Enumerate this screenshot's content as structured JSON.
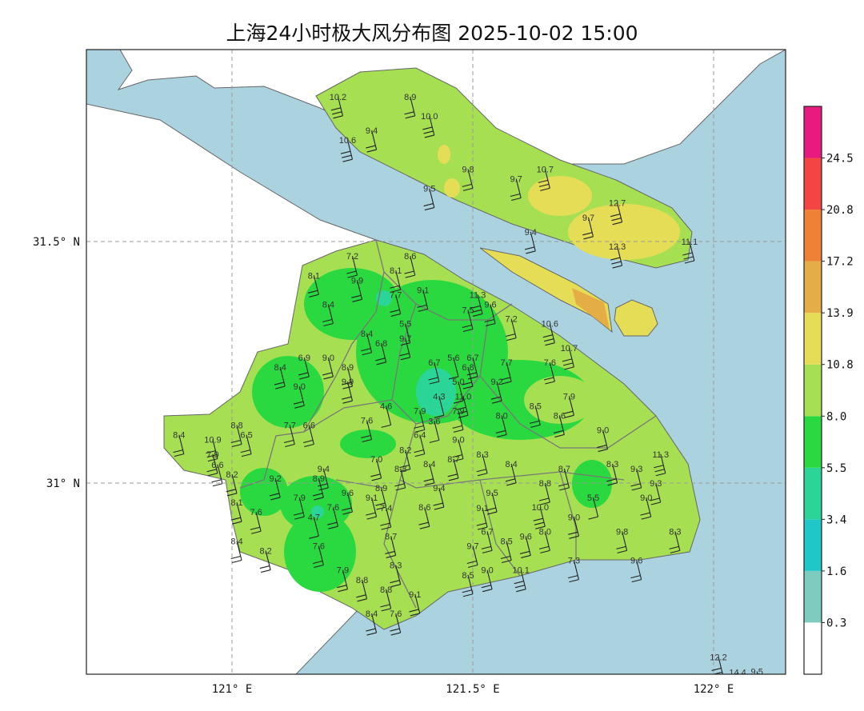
{
  "title": "上海24小时极大风分布图 2025-10-02 15:00",
  "axes": {
    "lon_ticks": [
      {
        "value": 121.0,
        "label": "121° E"
      },
      {
        "value": 121.5,
        "label": "121.5° E"
      },
      {
        "value": 122.0,
        "label": "122° E"
      }
    ],
    "lat_ticks": [
      {
        "value": 31.5,
        "label": "31.5° N"
      },
      {
        "value": 31.0,
        "label": "31° N"
      }
    ],
    "lon_range": [
      120.7,
      122.15
    ],
    "lat_range": [
      30.6,
      31.9
    ],
    "grid": "dashed"
  },
  "colors": {
    "water": "#aad3df",
    "land_outside": "#ffffff",
    "boundary": "#666666"
  },
  "colorbar": {
    "levels": [
      "0.3",
      "1.6",
      "3.4",
      "5.5",
      "8.0",
      "10.8",
      "13.9",
      "17.2",
      "20.8",
      "24.5"
    ],
    "colors": [
      "#ffffff",
      "#7fcbc0",
      "#20c7c9",
      "#2ad597",
      "#2ad940",
      "#a6e052",
      "#e5dd55",
      "#e5ad45",
      "#ef8137",
      "#f54444",
      "#e8197f"
    ]
  },
  "stations": [
    {
      "lon": 121.22,
      "lat": 31.8,
      "v": "10.2"
    },
    {
      "lon": 121.37,
      "lat": 31.8,
      "v": "8.9"
    },
    {
      "lon": 121.41,
      "lat": 31.76,
      "v": "10.0"
    },
    {
      "lon": 121.29,
      "lat": 31.73,
      "v": "9.4"
    },
    {
      "lon": 121.24,
      "lat": 31.71,
      "v": "10.6"
    },
    {
      "lon": 121.49,
      "lat": 31.65,
      "v": "9.8"
    },
    {
      "lon": 121.41,
      "lat": 31.61,
      "v": "9.5"
    },
    {
      "lon": 121.59,
      "lat": 31.63,
      "v": "9.7"
    },
    {
      "lon": 121.65,
      "lat": 31.65,
      "v": "10.7"
    },
    {
      "lon": 121.74,
      "lat": 31.55,
      "v": "9.7"
    },
    {
      "lon": 121.8,
      "lat": 31.58,
      "v": "12.7"
    },
    {
      "lon": 121.62,
      "lat": 31.52,
      "v": "9.4"
    },
    {
      "lon": 121.8,
      "lat": 31.49,
      "v": "12.3"
    },
    {
      "lon": 121.95,
      "lat": 31.5,
      "v": "11.1"
    },
    {
      "lon": 121.25,
      "lat": 31.47,
      "v": "7.2"
    },
    {
      "lon": 121.37,
      "lat": 31.47,
      "v": "8.6"
    },
    {
      "lon": 121.17,
      "lat": 31.43,
      "v": "8.1"
    },
    {
      "lon": 121.26,
      "lat": 31.42,
      "v": "9.9"
    },
    {
      "lon": 121.34,
      "lat": 31.44,
      "v": "8.1"
    },
    {
      "lon": 121.34,
      "lat": 31.39,
      "v": "7.7"
    },
    {
      "lon": 121.37,
      "lat": 31.4,
      "v": "9.1"
    },
    {
      "lon": 121.2,
      "lat": 31.37,
      "v": "8.4"
    },
    {
      "lon": 121.51,
      "lat": 31.39,
      "v": "11.3"
    },
    {
      "lon": 121.49,
      "lat": 31.38,
      "v": "7.5"
    },
    {
      "lon": 121.51,
      "lat": 31.37,
      "v": "9.6"
    },
    {
      "lon": 121.58,
      "lat": 31.34,
      "v": "7.2"
    },
    {
      "lon": 121.36,
      "lat": 31.33,
      "v": "5.5"
    },
    {
      "lon": 121.28,
      "lat": 31.31,
      "v": "8.4"
    },
    {
      "lon": 121.31,
      "lat": 31.29,
      "v": "6.8"
    },
    {
      "lon": 121.36,
      "lat": 31.3,
      "v": "9.7"
    },
    {
      "lon": 121.2,
      "lat": 31.26,
      "v": "9.0"
    },
    {
      "lon": 121.15,
      "lat": 31.26,
      "v": "6.9"
    },
    {
      "lon": 121.42,
      "lat": 31.25,
      "v": "6.7"
    },
    {
      "lon": 121.46,
      "lat": 31.26,
      "v": "5.6"
    },
    {
      "lon": 121.5,
      "lat": 31.26,
      "v": "6.7"
    },
    {
      "lon": 121.47,
      "lat": 31.21,
      "v": "5.0"
    },
    {
      "lon": 121.49,
      "lat": 31.24,
      "v": "6.8"
    },
    {
      "lon": 121.57,
      "lat": 31.25,
      "v": "7.7"
    },
    {
      "lon": 121.66,
      "lat": 31.33,
      "v": "10.6"
    },
    {
      "lon": 121.7,
      "lat": 31.28,
      "v": "10.7"
    },
    {
      "lon": 121.66,
      "lat": 31.25,
      "v": "7.6"
    },
    {
      "lon": 121.55,
      "lat": 31.21,
      "v": "9.2"
    },
    {
      "lon": 121.24,
      "lat": 31.24,
      "v": "8.9"
    },
    {
      "lon": 121.24,
      "lat": 31.21,
      "v": "9.9"
    },
    {
      "lon": 121.1,
      "lat": 31.24,
      "v": "8.4"
    },
    {
      "lon": 121.14,
      "lat": 31.2,
      "v": "9.0"
    },
    {
      "lon": 121.43,
      "lat": 31.18,
      "v": "4.3"
    },
    {
      "lon": 121.48,
      "lat": 31.18,
      "v": "11.0"
    },
    {
      "lon": 121.7,
      "lat": 31.18,
      "v": "7.9"
    },
    {
      "lon": 121.63,
      "lat": 31.16,
      "v": "8.5"
    },
    {
      "lon": 121.32,
      "lat": 31.16,
      "v": "4.6"
    },
    {
      "lon": 121.39,
      "lat": 31.15,
      "v": "7.9"
    },
    {
      "lon": 121.42,
      "lat": 31.15,
      "v": "3.6"
    },
    {
      "lon": 121.47,
      "lat": 31.15,
      "v": "7.9"
    },
    {
      "lon": 121.56,
      "lat": 31.14,
      "v": "8.0"
    },
    {
      "lon": 121.68,
      "lat": 31.14,
      "v": "8.6"
    },
    {
      "lon": 121.28,
      "lat": 31.13,
      "v": "7.6"
    },
    {
      "lon": 121.39,
      "lat": 31.1,
      "v": "6.4"
    },
    {
      "lon": 121.36,
      "lat": 31.09,
      "v": "8.2"
    },
    {
      "lon": 121.01,
      "lat": 31.12,
      "v": "8.8"
    },
    {
      "lon": 121.03,
      "lat": 31.1,
      "v": "6.5"
    },
    {
      "lon": 121.12,
      "lat": 31.12,
      "v": "7.7"
    },
    {
      "lon": 121.16,
      "lat": 31.12,
      "v": "6.6"
    },
    {
      "lon": 120.89,
      "lat": 31.1,
      "v": "8.4"
    },
    {
      "lon": 120.96,
      "lat": 31.09,
      "v": "10.9"
    },
    {
      "lon": 120.96,
      "lat": 31.06,
      "v": "7.9"
    },
    {
      "lon": 120.97,
      "lat": 31.06,
      "v": "6.6"
    },
    {
      "lon": 121.0,
      "lat": 31.04,
      "v": "8.2"
    },
    {
      "lon": 121.47,
      "lat": 31.09,
      "v": "9.0"
    },
    {
      "lon": 121.46,
      "lat": 31.05,
      "v": "8.7"
    },
    {
      "lon": 121.52,
      "lat": 31.06,
      "v": "8.3"
    },
    {
      "lon": 121.3,
      "lat": 31.05,
      "v": "7.0"
    },
    {
      "lon": 121.41,
      "lat": 31.04,
      "v": "8.4"
    },
    {
      "lon": 121.35,
      "lat": 31.03,
      "v": "8.3"
    },
    {
      "lon": 121.58,
      "lat": 31.04,
      "v": "8.4"
    },
    {
      "lon": 121.77,
      "lat": 31.11,
      "v": "9.0"
    },
    {
      "lon": 121.89,
      "lat": 31.06,
      "v": "11.3"
    },
    {
      "lon": 121.79,
      "lat": 31.04,
      "v": "8.3"
    },
    {
      "lon": 121.69,
      "lat": 31.03,
      "v": "8.7"
    },
    {
      "lon": 121.65,
      "lat": 31.0,
      "v": "8.8"
    },
    {
      "lon": 121.84,
      "lat": 31.03,
      "v": "9.3"
    },
    {
      "lon": 121.88,
      "lat": 31.0,
      "v": "9.3"
    },
    {
      "lon": 121.19,
      "lat": 31.03,
      "v": "9.4"
    },
    {
      "lon": 121.09,
      "lat": 31.01,
      "v": "9.2"
    },
    {
      "lon": 121.18,
      "lat": 31.01,
      "v": "8.9"
    },
    {
      "lon": 121.31,
      "lat": 30.99,
      "v": "8.9"
    },
    {
      "lon": 121.43,
      "lat": 30.99,
      "v": "9.4"
    },
    {
      "lon": 121.54,
      "lat": 30.98,
      "v": "9.5"
    },
    {
      "lon": 121.29,
      "lat": 30.97,
      "v": "9.1"
    },
    {
      "lon": 121.32,
      "lat": 30.97,
      "v": "7.4"
    },
    {
      "lon": 121.52,
      "lat": 30.97,
      "v": "9.1"
    },
    {
      "lon": 121.14,
      "lat": 30.97,
      "v": "7.9"
    },
    {
      "lon": 121.21,
      "lat": 30.95,
      "v": "7.6"
    },
    {
      "lon": 121.24,
      "lat": 30.98,
      "v": "9.6"
    },
    {
      "lon": 121.01,
      "lat": 30.96,
      "v": "8.1"
    },
    {
      "lon": 121.05,
      "lat": 30.94,
      "v": "7.6"
    },
    {
      "lon": 121.4,
      "lat": 30.95,
      "v": "8.6"
    },
    {
      "lon": 121.64,
      "lat": 30.95,
      "v": "10.0"
    },
    {
      "lon": 121.75,
      "lat": 30.97,
      "v": "5.5"
    },
    {
      "lon": 121.86,
      "lat": 30.97,
      "v": "9.0"
    },
    {
      "lon": 121.17,
      "lat": 30.93,
      "v": "4.7"
    },
    {
      "lon": 121.71,
      "lat": 30.93,
      "v": "9.0"
    },
    {
      "lon": 121.53,
      "lat": 30.9,
      "v": "6.7"
    },
    {
      "lon": 121.61,
      "lat": 30.89,
      "v": "9.6"
    },
    {
      "lon": 121.65,
      "lat": 30.9,
      "v": "8.0"
    },
    {
      "lon": 121.81,
      "lat": 30.9,
      "v": "9.8"
    },
    {
      "lon": 121.92,
      "lat": 30.9,
      "v": "8.3"
    },
    {
      "lon": 121.01,
      "lat": 30.88,
      "v": "8.4"
    },
    {
      "lon": 121.33,
      "lat": 30.89,
      "v": "8.7"
    },
    {
      "lon": 121.57,
      "lat": 30.88,
      "v": "8.5"
    },
    {
      "lon": 121.5,
      "lat": 30.87,
      "v": "9.7"
    },
    {
      "lon": 121.07,
      "lat": 30.86,
      "v": "8.2"
    },
    {
      "lon": 121.18,
      "lat": 30.87,
      "v": "7.6"
    },
    {
      "lon": 121.71,
      "lat": 30.84,
      "v": "7.3"
    },
    {
      "lon": 121.84,
      "lat": 30.84,
      "v": "9.6"
    },
    {
      "lon": 121.23,
      "lat": 30.82,
      "v": "7.9"
    },
    {
      "lon": 121.34,
      "lat": 30.83,
      "v": "8.3"
    },
    {
      "lon": 121.27,
      "lat": 30.8,
      "v": "8.8"
    },
    {
      "lon": 121.53,
      "lat": 30.82,
      "v": "9.0"
    },
    {
      "lon": 121.6,
      "lat": 30.82,
      "v": "10.1"
    },
    {
      "lon": 121.49,
      "lat": 30.81,
      "v": "8.5"
    },
    {
      "lon": 121.32,
      "lat": 30.78,
      "v": "8.8"
    },
    {
      "lon": 121.38,
      "lat": 30.77,
      "v": "9.1"
    },
    {
      "lon": 121.29,
      "lat": 30.73,
      "v": "8.4"
    },
    {
      "lon": 121.34,
      "lat": 30.73,
      "v": "7.6"
    },
    {
      "lon": 122.01,
      "lat": 30.64,
      "v": "12.2"
    },
    {
      "lon": 122.05,
      "lat": 30.63,
      "v": "14.4"
    },
    {
      "lon": 122.09,
      "lat": 30.61,
      "v": "9.5"
    }
  ]
}
